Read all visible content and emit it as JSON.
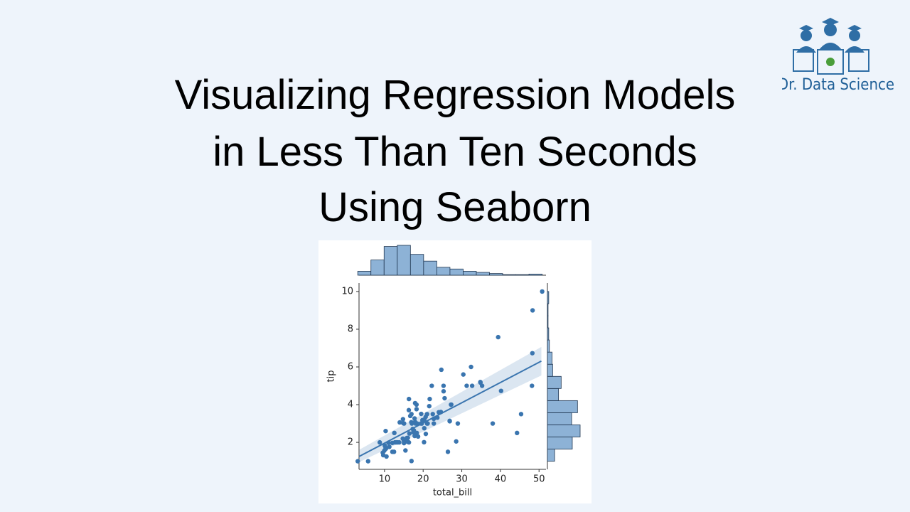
{
  "title": [
    "Visualizing Regression Models",
    "in Less Than Ten Seconds",
    "Using Seaborn"
  ],
  "logo": {
    "text": "Dr. Data Science"
  },
  "chart_data": {
    "type": "scatter",
    "x_label": "total_bill",
    "y_label": "tip",
    "color": "#3a75af",
    "hist_color": "#8db2d6",
    "xlim": [
      3.4,
      51.8
    ],
    "ylim": [
      0.57,
      10.45
    ],
    "xticks": [
      10,
      20,
      30,
      40,
      50
    ],
    "yticks": [
      2,
      4,
      6,
      8,
      10
    ],
    "x": [
      16.99,
      10.34,
      21.01,
      23.68,
      24.59,
      25.29,
      8.77,
      26.88,
      15.04,
      14.78,
      10.27,
      35.26,
      15.42,
      18.43,
      14.83,
      21.58,
      10.33,
      16.29,
      16.97,
      20.65,
      17.92,
      20.29,
      15.77,
      39.42,
      19.82,
      17.81,
      13.37,
      12.69,
      21.7,
      19.65,
      9.55,
      18.35,
      15.06,
      20.69,
      17.78,
      24.06,
      16.31,
      16.93,
      18.69,
      31.27,
      16.04,
      17.46,
      13.94,
      9.68,
      30.4,
      18.29,
      22.23,
      32.4,
      28.55,
      18.04,
      12.54,
      10.29,
      34.81,
      9.94,
      25.56,
      19.49,
      38.01,
      26.41,
      11.24,
      48.27,
      20.29,
      13.81,
      11.02,
      18.29,
      17.59,
      20.08,
      16.45,
      3.07,
      20.23,
      15.01,
      12.02,
      17.07,
      26.86,
      25.28,
      14.73,
      10.51,
      17.92,
      27.2,
      22.76,
      17.29,
      19.44,
      16.66,
      10.07,
      32.68,
      15.98,
      34.83,
      13.03,
      18.28,
      24.71,
      21.16,
      28.97,
      22.49,
      5.75,
      16.32,
      22.75,
      40.17,
      27.28,
      12.03,
      21.01,
      12.46,
      50.81,
      48.17,
      48.33,
      44.3,
      45.35
    ],
    "values": [
      1.01,
      1.66,
      3.5,
      3.31,
      3.61,
      4.71,
      2,
      3.12,
      1.96,
      3.23,
      1.71,
      5,
      1.57,
      3,
      3.02,
      3.92,
      1.67,
      3.71,
      3.5,
      3.35,
      4.08,
      2.75,
      2.23,
      7.58,
      3.18,
      2.34,
      2,
      2,
      4.3,
      3,
      1.45,
      2.5,
      3,
      2.45,
      3.27,
      3.6,
      2,
      3.07,
      2.31,
      5,
      2.24,
      2.54,
      3.06,
      1.32,
      5.6,
      3,
      5,
      6,
      2.05,
      3,
      2.5,
      2.6,
      5.2,
      1.56,
      4.34,
      3.51,
      3,
      1.5,
      1.76,
      6.73,
      3.21,
      2,
      1.98,
      3.76,
      2.64,
      3.15,
      2.47,
      1,
      2.01,
      2.09,
      1.97,
      3,
      3.14,
      5,
      2.2,
      1.25,
      3.08,
      4,
      3,
      2.71,
      3,
      3.4,
      1.83,
      5,
      2.03,
      5.17,
      2,
      4,
      5.85,
      3,
      3,
      3.5,
      1,
      4.3,
      3.25,
      4.73,
      4,
      1.5,
      3,
      1.5,
      10,
      5,
      9,
      2.5,
      3.5
    ],
    "fit": {
      "x": [
        3.4,
        50.6
      ],
      "values": [
        1.25,
        6.31
      ],
      "ci_upper": [
        1.6,
        7.06
      ],
      "ci_lower": [
        0.95,
        5.55
      ]
    },
    "x_hist": {
      "bins": [
        3.07,
        6.48,
        9.89,
        13.3,
        16.71,
        20.12,
        23.53,
        26.94,
        30.35,
        33.76,
        37.17,
        40.58,
        43.99,
        47.4,
        50.81
      ],
      "counts": [
        7,
        27,
        51,
        53,
        37,
        25,
        14,
        11,
        7,
        5,
        3,
        1,
        1,
        2
      ]
    },
    "y_hist": {
      "bins": [
        1,
        1.643,
        2.286,
        2.929,
        3.571,
        4.214,
        4.857,
        5.5,
        6.143,
        6.786,
        7.429,
        8.071,
        8.714,
        9.357,
        10
      ],
      "counts": [
        11,
        38,
        50,
        37,
        46,
        17,
        21,
        8,
        7,
        3,
        2,
        1,
        1,
        2
      ]
    }
  }
}
